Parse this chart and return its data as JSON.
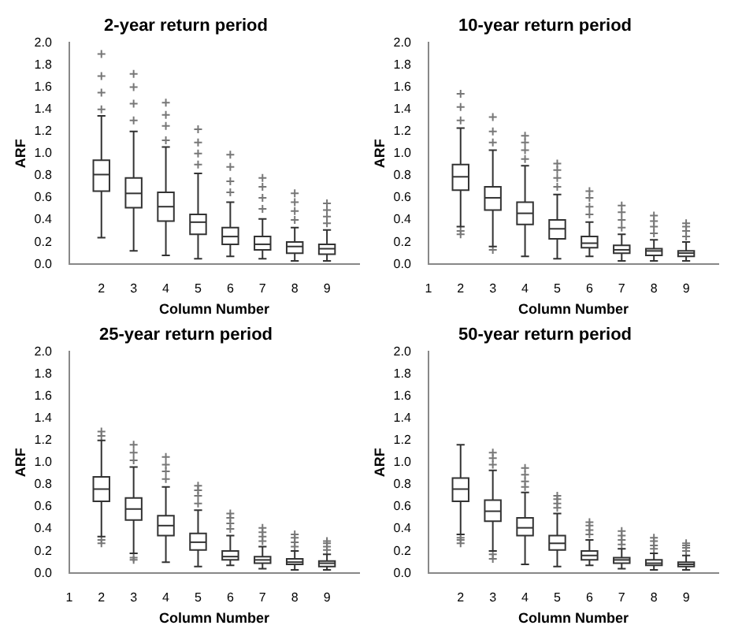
{
  "chart_data": [
    {
      "type": "box",
      "title": "2-year return period",
      "xlabel": "Column Number",
      "ylabel": "ARF",
      "categories": [
        null,
        "2",
        "3",
        "4",
        "5",
        "6",
        "7",
        "8",
        "9",
        null
      ],
      "ylim": [
        0,
        2
      ],
      "yticks": [
        {
          "value": 0,
          "label": "0.0"
        },
        0.2,
        0.4,
        0.6,
        0.8,
        {
          "value": 1,
          "label": "1.0"
        },
        1.2,
        1.4,
        1.6,
        1.8,
        {
          "value": 2,
          "label": "2.0"
        }
      ],
      "grid": false,
      "legend": false,
      "boxes": [
        null,
        {
          "low": 0.24,
          "q1": 0.66,
          "median": 0.81,
          "q3": 0.94,
          "high": 1.34,
          "outliers": [
            1.4,
            1.55,
            1.7,
            1.9
          ]
        },
        {
          "low": 0.12,
          "q1": 0.51,
          "median": 0.64,
          "q3": 0.78,
          "high": 1.2,
          "outliers": [
            1.3,
            1.45,
            1.6,
            1.72
          ]
        },
        {
          "low": 0.08,
          "q1": 0.39,
          "median": 0.52,
          "q3": 0.65,
          "high": 1.06,
          "outliers": [
            1.12,
            1.25,
            1.35,
            1.46
          ]
        },
        {
          "low": 0.05,
          "q1": 0.27,
          "median": 0.38,
          "q3": 0.45,
          "high": 0.82,
          "outliers": [
            0.9,
            1.0,
            1.1,
            1.22
          ]
        },
        {
          "low": 0.07,
          "q1": 0.18,
          "median": 0.25,
          "q3": 0.33,
          "high": 0.56,
          "outliers": [
            0.65,
            0.75,
            0.88,
            0.99
          ]
        },
        {
          "low": 0.05,
          "q1": 0.13,
          "median": 0.18,
          "q3": 0.25,
          "high": 0.41,
          "outliers": [
            0.5,
            0.6,
            0.7,
            0.78
          ]
        },
        {
          "low": 0.03,
          "q1": 0.1,
          "median": 0.16,
          "q3": 0.2,
          "high": 0.33,
          "outliers": [
            0.4,
            0.48,
            0.56,
            0.64
          ]
        },
        {
          "low": 0.03,
          "q1": 0.09,
          "median": 0.14,
          "q3": 0.18,
          "high": 0.31,
          "outliers": [
            0.37,
            0.43,
            0.49,
            0.55
          ]
        },
        null
      ]
    },
    {
      "type": "box",
      "title": "10-year return period",
      "xlabel": "Column Number",
      "ylabel": "ARF",
      "categories": [
        "1",
        "2",
        "3",
        "4",
        "5",
        "6",
        "7",
        "8",
        "9",
        null
      ],
      "ylim": [
        0,
        2
      ],
      "yticks": [
        {
          "value": 0,
          "label": "0.0"
        },
        0.2,
        0.4,
        0.6,
        0.8,
        {
          "value": 1,
          "label": "1.0"
        },
        1.2,
        1.4,
        1.6,
        1.8,
        {
          "value": 2,
          "label": "2.0"
        }
      ],
      "grid": false,
      "legend": false,
      "boxes": [
        null,
        {
          "low": 0.34,
          "q1": 0.67,
          "median": 0.79,
          "q3": 0.9,
          "high": 1.23,
          "outliers": [
            0.27,
            0.3,
            1.3,
            1.42,
            1.54
          ]
        },
        {
          "low": 0.16,
          "q1": 0.49,
          "median": 0.6,
          "q3": 0.7,
          "high": 1.03,
          "outliers": [
            0.13,
            1.1,
            1.2,
            1.33
          ]
        },
        {
          "low": 0.07,
          "q1": 0.36,
          "median": 0.46,
          "q3": 0.56,
          "high": 0.89,
          "outliers": [
            0.95,
            1.03,
            1.1,
            1.16
          ]
        },
        {
          "low": 0.05,
          "q1": 0.23,
          "median": 0.32,
          "q3": 0.4,
          "high": 0.63,
          "outliers": [
            0.7,
            0.78,
            0.85,
            0.91
          ]
        },
        {
          "low": 0.07,
          "q1": 0.15,
          "median": 0.19,
          "q3": 0.25,
          "high": 0.38,
          "outliers": [
            0.45,
            0.52,
            0.6,
            0.66
          ]
        },
        {
          "low": 0.03,
          "q1": 0.1,
          "median": 0.13,
          "q3": 0.17,
          "high": 0.27,
          "outliers": [
            0.33,
            0.4,
            0.47,
            0.53
          ]
        },
        {
          "low": 0.03,
          "q1": 0.08,
          "median": 0.12,
          "q3": 0.14,
          "high": 0.22,
          "outliers": [
            0.28,
            0.34,
            0.39,
            0.44
          ]
        },
        {
          "low": 0.03,
          "q1": 0.07,
          "median": 0.1,
          "q3": 0.12,
          "high": 0.2,
          "outliers": [
            0.25,
            0.3,
            0.34,
            0.37
          ]
        },
        null
      ]
    },
    {
      "type": "box",
      "title": "25-year return period",
      "xlabel": "Column Number",
      "ylabel": "ARF",
      "categories": [
        "1",
        "2",
        "3",
        "4",
        "5",
        "6",
        "7",
        "8",
        "9",
        null
      ],
      "ylim": [
        0,
        2
      ],
      "yticks": [
        {
          "value": 0,
          "label": "0.0"
        },
        0.2,
        0.4,
        0.6,
        0.8,
        {
          "value": 1,
          "label": "1.0"
        },
        1.2,
        1.4,
        1.6,
        1.8,
        {
          "value": 2,
          "label": "2.0"
        }
      ],
      "grid": false,
      "legend": false,
      "boxes": [
        null,
        {
          "low": 0.33,
          "q1": 0.65,
          "median": 0.76,
          "q3": 0.87,
          "high": 1.2,
          "outliers": [
            0.27,
            0.3,
            1.24,
            1.28
          ]
        },
        {
          "low": 0.18,
          "q1": 0.48,
          "median": 0.58,
          "q3": 0.68,
          "high": 0.96,
          "outliers": [
            0.12,
            0.14,
            1.02,
            1.09,
            1.16
          ]
        },
        {
          "low": 0.1,
          "q1": 0.34,
          "median": 0.43,
          "q3": 0.52,
          "high": 0.78,
          "outliers": [
            0.85,
            0.92,
            0.98,
            1.05
          ]
        },
        {
          "low": 0.06,
          "q1": 0.21,
          "median": 0.28,
          "q3": 0.36,
          "high": 0.57,
          "outliers": [
            0.63,
            0.7,
            0.75,
            0.79
          ]
        },
        {
          "low": 0.07,
          "q1": 0.12,
          "median": 0.15,
          "q3": 0.2,
          "high": 0.34,
          "outliers": [
            0.4,
            0.45,
            0.5,
            0.54
          ]
        },
        {
          "low": 0.04,
          "q1": 0.09,
          "median": 0.12,
          "q3": 0.15,
          "high": 0.24,
          "outliers": [
            0.29,
            0.33,
            0.37,
            0.41
          ]
        },
        {
          "low": 0.03,
          "q1": 0.08,
          "median": 0.1,
          "q3": 0.13,
          "high": 0.2,
          "outliers": [
            0.24,
            0.28,
            0.32,
            0.35
          ]
        },
        {
          "low": 0.03,
          "q1": 0.06,
          "median": 0.09,
          "q3": 0.11,
          "high": 0.17,
          "outliers": [
            0.21,
            0.24,
            0.27,
            0.29
          ]
        },
        null
      ]
    },
    {
      "type": "box",
      "title": "50-year return period",
      "xlabel": "Column Number",
      "ylabel": "ARF",
      "categories": [
        null,
        "2",
        "3",
        "4",
        "5",
        "6",
        "7",
        "8",
        "9",
        null
      ],
      "ylim": [
        0,
        2
      ],
      "yticks": [
        {
          "value": 0,
          "label": "0.0"
        },
        0.2,
        0.4,
        0.6,
        0.8,
        {
          "value": 1,
          "label": "1.0"
        },
        1.2,
        1.4,
        1.6,
        1.8,
        {
          "value": 2,
          "label": "2.0"
        }
      ],
      "grid": false,
      "legend": false,
      "boxes": [
        null,
        {
          "low": 0.35,
          "q1": 0.65,
          "median": 0.76,
          "q3": 0.86,
          "high": 1.16,
          "outliers": [
            0.27,
            0.3,
            0.32
          ]
        },
        {
          "low": 0.2,
          "q1": 0.47,
          "median": 0.56,
          "q3": 0.66,
          "high": 0.93,
          "outliers": [
            0.13,
            0.17,
            0.98,
            1.04,
            1.09
          ]
        },
        {
          "low": 0.08,
          "q1": 0.34,
          "median": 0.41,
          "q3": 0.5,
          "high": 0.73,
          "outliers": [
            0.78,
            0.83,
            0.89,
            0.95
          ]
        },
        {
          "low": 0.06,
          "q1": 0.21,
          "median": 0.27,
          "q3": 0.34,
          "high": 0.54,
          "outliers": [
            0.59,
            0.63,
            0.67,
            0.7
          ]
        },
        {
          "low": 0.07,
          "q1": 0.12,
          "median": 0.16,
          "q3": 0.2,
          "high": 0.3,
          "outliers": [
            0.35,
            0.39,
            0.43,
            0.46
          ]
        },
        {
          "low": 0.04,
          "q1": 0.09,
          "median": 0.12,
          "q3": 0.14,
          "high": 0.22,
          "outliers": [
            0.26,
            0.3,
            0.34,
            0.38
          ]
        },
        {
          "low": 0.03,
          "q1": 0.07,
          "median": 0.09,
          "q3": 0.12,
          "high": 0.18,
          "outliers": [
            0.22,
            0.25,
            0.29,
            0.32
          ]
        },
        {
          "low": 0.03,
          "q1": 0.06,
          "median": 0.08,
          "q3": 0.1,
          "high": 0.16,
          "outliers": [
            0.2,
            0.23,
            0.25,
            0.27
          ]
        },
        null
      ]
    }
  ]
}
